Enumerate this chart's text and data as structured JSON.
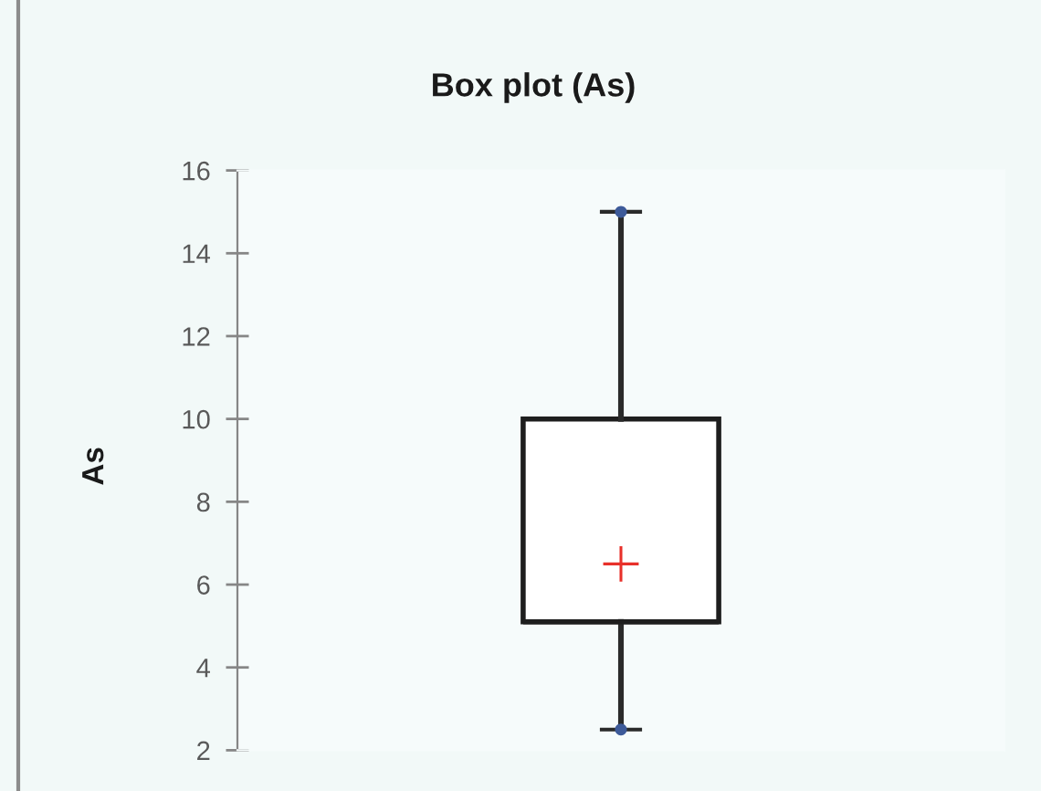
{
  "chart_data": {
    "type": "box",
    "title": "Box plot (As)",
    "ylabel": "As",
    "categories": [
      null
    ],
    "boxes": [
      {
        "low": 2.5,
        "q1": 5.1,
        "median": 5.1,
        "q3": 10,
        "high": 15,
        "mean": 6.5
      }
    ],
    "series": [
      {
        "type": "scatter",
        "color": "#3d5a99",
        "marker": "circle",
        "values": [
          2.5
        ]
      },
      {
        "type": "scatter",
        "color": "#3d5a99",
        "marker": "circle",
        "values": [
          15
        ]
      }
    ],
    "ylim": [
      2,
      16
    ],
    "yticks": [
      2,
      4,
      6,
      8,
      10,
      12,
      14,
      16
    ],
    "tick_labels": "y"
  }
}
